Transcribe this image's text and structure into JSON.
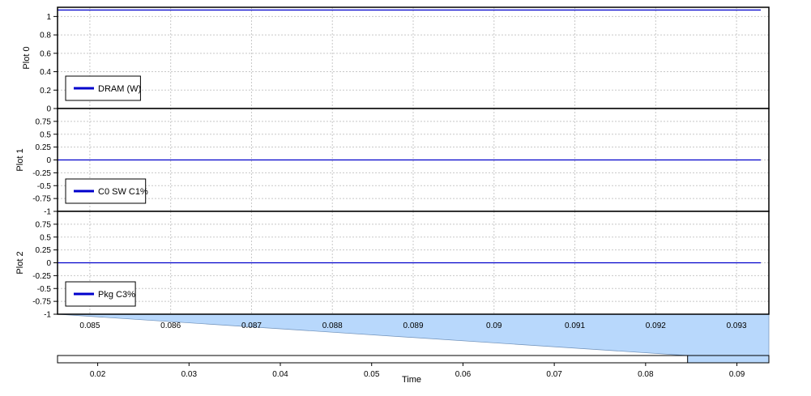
{
  "chart_data": {
    "type": "line",
    "x_ticks": [
      "0.085",
      "0.086",
      "0.087",
      "0.088",
      "0.089",
      "0.09",
      "0.091",
      "0.092",
      "0.093"
    ],
    "x_tick_values": [
      0.085,
      0.086,
      0.087,
      0.088,
      0.089,
      0.09,
      0.091,
      0.092,
      0.093
    ],
    "xlim": [
      0.0846,
      0.0934
    ],
    "plots": [
      {
        "ylabel": "Plot 0",
        "ylim": [
          0,
          1.1
        ],
        "y_ticks": [
          "1",
          "0.8",
          "0.6",
          "0.4",
          "0.2",
          "0"
        ],
        "y_tick_values": [
          1,
          0.8,
          0.6,
          0.4,
          0.2,
          0
        ],
        "legend": "DRAM (W)",
        "series": [
          {
            "name": "DRAM (W)",
            "color": "#0000cc",
            "x": [
              0.0846,
              0.0933
            ],
            "values": [
              1.07,
              1.07
            ]
          }
        ]
      },
      {
        "ylabel": "Plot 1",
        "ylim": [
          -1,
          1
        ],
        "y_ticks": [
          "0.75",
          "0.5",
          "0.25",
          "0",
          "-0.25",
          "-0.5",
          "-0.75",
          "-1"
        ],
        "y_tick_values": [
          0.75,
          0.5,
          0.25,
          0,
          -0.25,
          -0.5,
          -0.75,
          -1
        ],
        "legend": "C0 SW C1%",
        "series": [
          {
            "name": "C0 SW C1%",
            "color": "#0000cc",
            "x": [
              0.0846,
              0.0933
            ],
            "values": [
              0,
              0
            ]
          }
        ]
      },
      {
        "ylabel": "Plot 2",
        "ylim": [
          -1,
          1
        ],
        "y_ticks": [
          "0.75",
          "0.5",
          "0.25",
          "0",
          "-0.25",
          "-0.5",
          "-0.75",
          "-1"
        ],
        "y_tick_values": [
          0.75,
          0.5,
          0.25,
          0,
          -0.25,
          -0.5,
          -0.75,
          -1
        ],
        "legend": "Pkg C3%",
        "series": [
          {
            "name": "Pkg C3%",
            "color": "#0000cc",
            "x": [
              0.0846,
              0.0933
            ],
            "values": [
              0,
              0
            ]
          }
        ]
      }
    ],
    "overview": {
      "xlabel": "Time",
      "xlim": [
        0.0156,
        0.0935
      ],
      "x_ticks": [
        "0.02",
        "0.03",
        "0.04",
        "0.05",
        "0.06",
        "0.07",
        "0.08",
        "0.09"
      ],
      "x_tick_values": [
        0.02,
        0.03,
        0.04,
        0.05,
        0.06,
        0.07,
        0.08,
        0.09
      ],
      "selection": [
        0.0846,
        0.0935
      ],
      "selection_color": "#b8d8fc"
    }
  }
}
